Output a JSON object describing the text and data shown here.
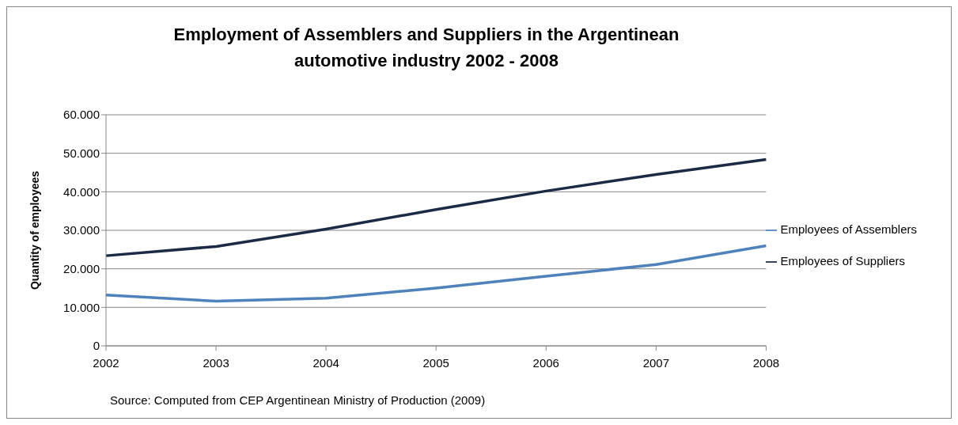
{
  "chart_data": {
    "type": "line",
    "title": "Employment of Assemblers and Suppliers in the Argentinean automotive industry 2002 - 2008",
    "ylabel": "Quantity of employees",
    "categories": [
      "2002",
      "2003",
      "2004",
      "2005",
      "2006",
      "2007",
      "2008"
    ],
    "series": [
      {
        "name": "Employees of Assemblers",
        "color": "#4f81bd",
        "values": [
          13200,
          11600,
          12400,
          15000,
          18100,
          21100,
          26000
        ]
      },
      {
        "name": "Employees of Suppliers",
        "color": "#1b2a45",
        "values": [
          23400,
          25800,
          30300,
          35400,
          40200,
          44500,
          48400
        ]
      }
    ],
    "ylim": [
      0,
      60000
    ],
    "yticks": [
      {
        "value": 0,
        "label": "0"
      },
      {
        "value": 10000,
        "label": "10.000"
      },
      {
        "value": 20000,
        "label": "20.000"
      },
      {
        "value": 30000,
        "label": "30.000"
      },
      {
        "value": 40000,
        "label": "40.000"
      },
      {
        "value": 50000,
        "label": "50.000"
      },
      {
        "value": 60000,
        "label": "60.000"
      }
    ],
    "grid": "y",
    "legend": "right",
    "marker": "none",
    "line_style": "solid",
    "annotations": [
      "Source: Computed from CEP Argentinean Ministry of Production (2009)"
    ]
  }
}
